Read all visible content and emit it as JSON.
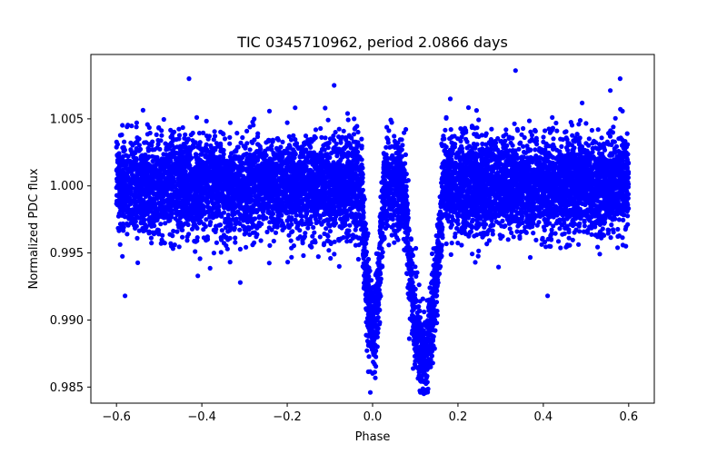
{
  "chart_data": {
    "type": "scatter",
    "title": "TIC 0345710962, period 2.0866 days",
    "xlabel": "Phase",
    "ylabel": "Normalized PDC flux",
    "xlim": [
      -0.66,
      0.66
    ],
    "ylim": [
      0.9838,
      1.0098
    ],
    "xticks": [
      -0.6,
      -0.4,
      -0.2,
      0.0,
      0.2,
      0.4,
      0.6
    ],
    "xtick_labels": [
      "−0.6",
      "−0.4",
      "−0.2",
      "0.0",
      "0.2",
      "0.4",
      "0.6"
    ],
    "yticks": [
      0.985,
      0.99,
      0.995,
      1.0,
      1.005
    ],
    "ytick_labels": [
      "0.985",
      "0.990",
      "0.995",
      "1.000",
      "1.005"
    ],
    "marker_color": "#0000ff",
    "series": [
      {
        "name": "flux",
        "description": "Phase-folded light curve of an eclipsing binary: baseline ~1.000 with scatter ~0.002, primary eclipse centered at phase ~0.12 reaching ~0.985, secondary eclipse at phase ~0.0 reaching ~0.988",
        "phase_range": [
          -0.6,
          0.6
        ],
        "baseline": 1.0,
        "scatter_sigma": 0.0018,
        "primary_eclipse": {
          "center": 0.12,
          "depth": 0.0125,
          "half_width": 0.045
        },
        "secondary_eclipse": {
          "center": 0.0,
          "depth": 0.0105,
          "half_width": 0.025
        },
        "outliers": [
          {
            "x": -0.58,
            "y": 0.9918
          },
          {
            "x": 0.335,
            "y": 1.0086
          },
          {
            "x": 0.12,
            "y": 0.9845
          },
          {
            "x": -0.43,
            "y": 1.008
          },
          {
            "x": 0.58,
            "y": 1.008
          },
          {
            "x": 0.41,
            "y": 0.9918
          },
          {
            "x": -0.09,
            "y": 1.0075
          },
          {
            "x": -0.31,
            "y": 0.9928
          }
        ]
      }
    ]
  }
}
